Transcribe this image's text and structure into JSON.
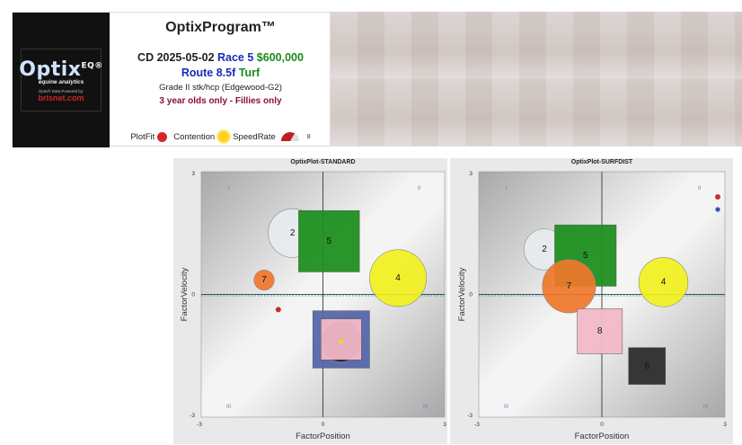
{
  "header": {
    "program_title": "OptixProgram™",
    "date": "CD 2025-05-02",
    "race": "Race 5",
    "purse": "$600,000",
    "route": "Route 8.5f",
    "surface": "Turf",
    "grade": "Grade II stk/hcp (Edgewood-G2)",
    "restriction": "3 year olds only - Fillies only"
  },
  "logo": {
    "brand": "Optix",
    "superscript": "EQ®",
    "tagline": "equine analytics",
    "powered_by": "Optix® Data Powered by:",
    "partner": "brisnet.com"
  },
  "legend": {
    "plotfit_label": "PlotFit",
    "contention_label": "Contention",
    "speedrate_label": "SpeedRate",
    "speedrate_value": "8",
    "plotfit_color": "#d6262b",
    "contention_color": "#ffd21f"
  },
  "chart_data": [
    {
      "type": "scatter",
      "title": "OptixPlot-STANDARD",
      "xlabel": "FactorPosition",
      "ylabel": "FactorVelocity",
      "xlim": [
        -3,
        3
      ],
      "ylim": [
        -3,
        3
      ],
      "xticks": [
        "-3",
        "0",
        "3"
      ],
      "yticks": [
        "-3",
        "0",
        "3"
      ],
      "quadrant_labels": [
        "I",
        "II",
        "III",
        "IV"
      ],
      "markers": [
        {
          "id": "2",
          "shape": "circle",
          "x": -0.75,
          "y": 1.5,
          "r": 0.6,
          "color": "#e8ebee"
        },
        {
          "id": "5",
          "shape": "square",
          "x": 0.15,
          "y": 1.3,
          "half": 0.75,
          "color": "#1f8f1f"
        },
        {
          "id": "4",
          "shape": "circle",
          "x": 1.85,
          "y": 0.4,
          "r": 0.7,
          "color": "#f1f11e"
        },
        {
          "id": "7",
          "shape": "circle",
          "x": -1.45,
          "y": 0.35,
          "r": 0.25,
          "color": "#f0772a"
        },
        {
          "id": "8",
          "shape": "square",
          "x": 0.45,
          "y": -1.1,
          "half": 0.7,
          "color": "#5566aa"
        },
        {
          "id": "8b",
          "shape": "circle",
          "x": 0.45,
          "y": -1.15,
          "r": 0.5,
          "color": "#111111"
        },
        {
          "id": "8c",
          "shape": "square",
          "x": 0.45,
          "y": -1.1,
          "half": 0.5,
          "color": "#f2b8c8"
        }
      ]
    },
    {
      "type": "scatter",
      "title": "OptixPlot-SURFDIST",
      "xlabel": "FactorPosition",
      "ylabel": "FactorVelocity",
      "xlim": [
        -3,
        3
      ],
      "ylim": [
        -3,
        3
      ],
      "xticks": [
        "-3",
        "0",
        "3"
      ],
      "yticks": [
        "-3",
        "0",
        "3"
      ],
      "quadrant_labels": [
        "I",
        "II",
        "III",
        "IV"
      ],
      "markers": [
        {
          "id": "2",
          "shape": "circle",
          "x": -1.4,
          "y": 1.1,
          "r": 0.5,
          "color": "#e8ebee"
        },
        {
          "id": "5",
          "shape": "square",
          "x": -0.4,
          "y": 0.95,
          "half": 0.75,
          "color": "#1f8f1f"
        },
        {
          "id": "7",
          "shape": "circle",
          "x": -0.8,
          "y": 0.2,
          "r": 0.65,
          "color": "#f0772a"
        },
        {
          "id": "4",
          "shape": "circle",
          "x": 1.5,
          "y": 0.3,
          "r": 0.6,
          "color": "#f1f11e"
        },
        {
          "id": "8",
          "shape": "square",
          "x": -0.05,
          "y": -0.9,
          "half": 0.55,
          "color": "#f2b8c8"
        },
        {
          "id": "6",
          "shape": "square",
          "x": 1.1,
          "y": -1.75,
          "half": 0.45,
          "color": "#2d2d2d"
        }
      ]
    }
  ]
}
